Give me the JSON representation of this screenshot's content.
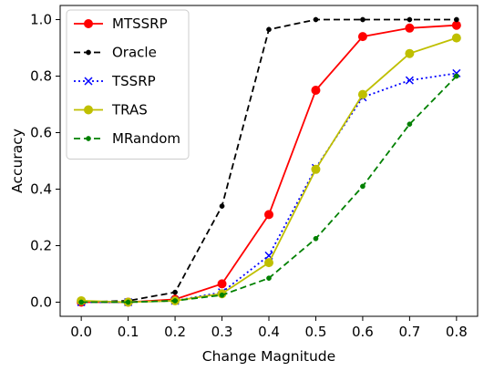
{
  "chart_data": {
    "type": "line",
    "title": "",
    "xlabel": "Change Magnitude",
    "ylabel": "Accuracy",
    "x": [
      0.0,
      0.1,
      0.2,
      0.3,
      0.4,
      0.5,
      0.6,
      0.7,
      0.8
    ],
    "x_tick_labels": [
      "0.0",
      "0.1",
      "0.2",
      "0.3",
      "0.4",
      "0.5",
      "0.6",
      "0.7",
      "0.8"
    ],
    "y_ticks": [
      0.0,
      0.2,
      0.4,
      0.6,
      0.8,
      1.0
    ],
    "y_tick_labels": [
      "0.0",
      "0.2",
      "0.4",
      "0.6",
      "0.8",
      "1.0"
    ],
    "xlim": [
      -0.045,
      0.845
    ],
    "ylim": [
      -0.05,
      1.05
    ],
    "grid": false,
    "legend_position": "top-left",
    "series": [
      {
        "name": "MTSSRP",
        "color": "#ff0000",
        "line_style": "solid",
        "marker": "circle",
        "values": [
          0.0,
          0.0,
          0.01,
          0.065,
          0.31,
          0.75,
          0.94,
          0.97,
          0.98
        ]
      },
      {
        "name": "Oracle",
        "color": "#000000",
        "line_style": "dashed",
        "marker": "dot",
        "values": [
          0.0,
          0.005,
          0.035,
          0.34,
          0.965,
          1.0,
          1.0,
          1.0,
          1.0
        ]
      },
      {
        "name": "TSSRP",
        "color": "#0000ff",
        "line_style": "dotted",
        "marker": "x",
        "values": [
          0.0,
          0.0,
          0.005,
          0.035,
          0.165,
          0.475,
          0.725,
          0.785,
          0.81
        ]
      },
      {
        "name": "TRAS",
        "color": "#bfbf00",
        "line_style": "solid",
        "marker": "circle",
        "values": [
          0.005,
          0.0,
          0.005,
          0.03,
          0.14,
          0.47,
          0.735,
          0.88,
          0.935
        ]
      },
      {
        "name": "MRandom",
        "color": "#008000",
        "line_style": "dashed",
        "marker": "dot",
        "values": [
          0.0,
          0.0,
          0.005,
          0.025,
          0.085,
          0.225,
          0.41,
          0.63,
          0.8
        ]
      }
    ]
  }
}
